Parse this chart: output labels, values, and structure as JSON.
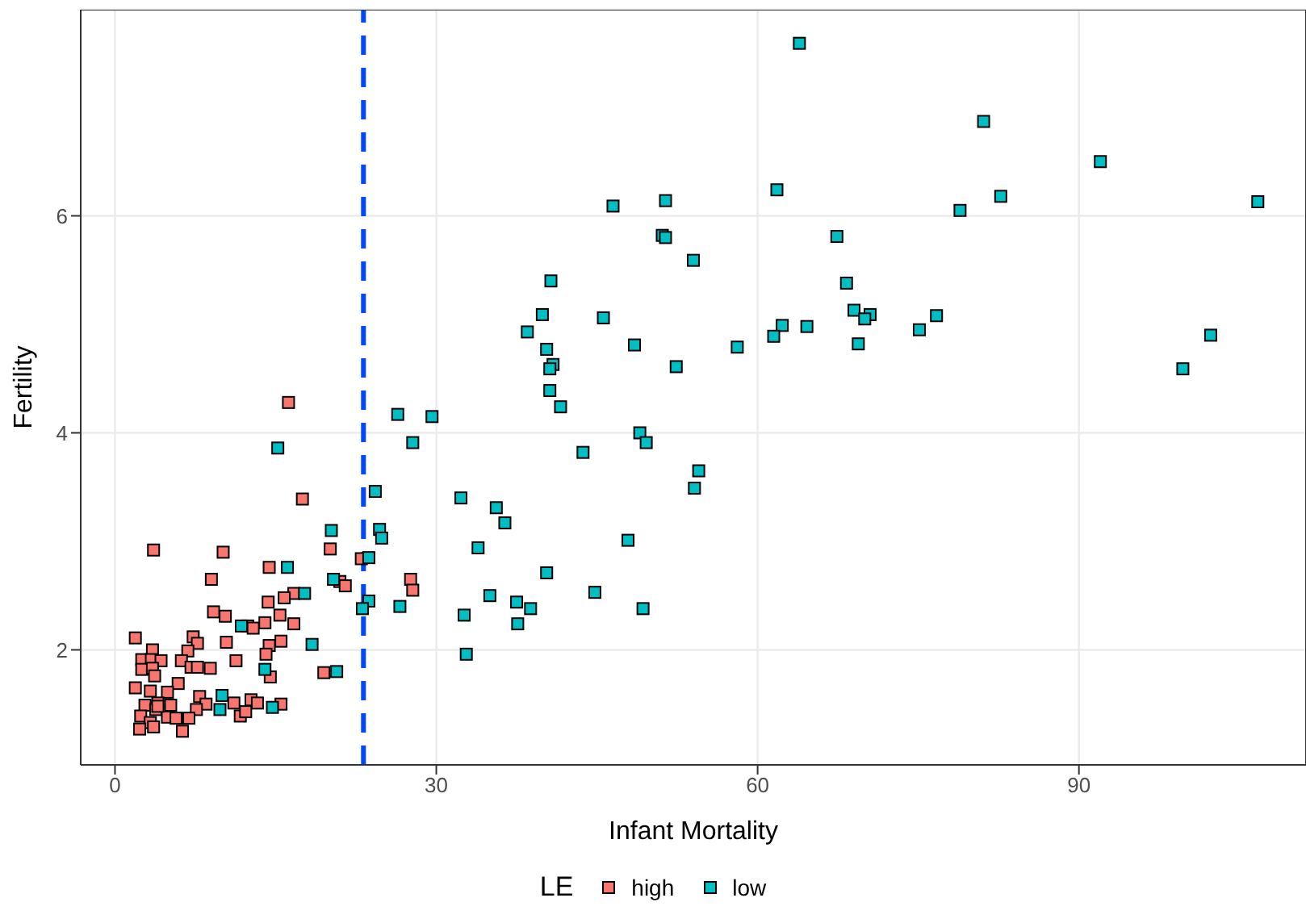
{
  "chart_data": {
    "type": "scatter",
    "xlabel": "Infant Mortality",
    "ylabel": "Fertility",
    "legend_title": "LE",
    "legend": "bottom",
    "grid": true,
    "marker": "square",
    "xlim": [
      -3.2,
      111.2
    ],
    "ylim": [
      0.94,
      7.9
    ],
    "xticks": [
      0,
      30,
      60,
      90
    ],
    "yticks": [
      2,
      4,
      6
    ],
    "ref_lines": [
      {
        "axis": "x",
        "value": 23.2,
        "color": "#0047ff",
        "line_style": "dashed"
      }
    ],
    "series": [
      {
        "name": "high",
        "color": "#f8766d",
        "x": [
          16.2,
          17.5,
          20.1,
          23.0,
          3.6,
          10.1,
          14.4,
          9.0,
          21.0,
          21.5,
          16.7,
          15.8,
          14.3,
          9.2,
          10.3,
          15.4,
          16.7,
          12.4,
          12.9,
          14.0,
          1.9,
          7.3,
          10.4,
          7.7,
          15.5,
          14.4,
          3.5,
          6.8,
          2.5,
          3.4,
          4.3,
          6.2,
          11.3,
          14.1,
          7.1,
          7.7,
          8.9,
          2.5,
          3.5,
          3.7,
          14.5,
          19.5,
          5.9,
          1.9,
          3.3,
          4.9,
          7.9,
          8.5,
          2.8,
          4.0,
          5.2,
          7.6,
          11.1,
          12.7,
          13.3,
          15.5,
          2.4,
          3.3,
          3.6,
          2.3,
          4.9,
          5.7,
          6.9,
          11.7,
          12.2,
          6.3,
          3.8,
          4.0,
          27.6,
          27.8
        ],
        "values": [
          4.28,
          3.39,
          2.93,
          2.84,
          2.92,
          2.9,
          2.76,
          2.65,
          2.63,
          2.59,
          2.52,
          2.48,
          2.44,
          2.35,
          2.31,
          2.32,
          2.24,
          2.22,
          2.2,
          2.25,
          2.11,
          2.12,
          2.07,
          2.06,
          2.08,
          2.04,
          2.0,
          1.99,
          1.91,
          1.91,
          1.9,
          1.9,
          1.9,
          1.96,
          1.84,
          1.84,
          1.83,
          1.82,
          1.83,
          1.76,
          1.75,
          1.79,
          1.69,
          1.65,
          1.62,
          1.61,
          1.57,
          1.5,
          1.49,
          1.51,
          1.49,
          1.45,
          1.51,
          1.54,
          1.51,
          1.5,
          1.39,
          1.33,
          1.29,
          1.27,
          1.38,
          1.37,
          1.37,
          1.39,
          1.43,
          1.25,
          1.45,
          1.48,
          2.65,
          2.55
        ]
      },
      {
        "name": "low",
        "color": "#00bfc4",
        "x": [
          63.9,
          81.1,
          92.0,
          61.8,
          82.7,
          106.7,
          46.5,
          51.4,
          78.9,
          51.1,
          51.4,
          67.4,
          54.0,
          40.7,
          68.3,
          39.9,
          45.6,
          69.0,
          70.5,
          70.0,
          76.7,
          75.1,
          38.5,
          62.3,
          64.6,
          61.5,
          40.3,
          48.5,
          58.1,
          69.4,
          102.3,
          99.7,
          40.9,
          40.6,
          52.4,
          40.6,
          41.6,
          26.4,
          29.6,
          27.8,
          43.7,
          49.0,
          49.6,
          54.5,
          54.1,
          24.3,
          32.3,
          35.6,
          36.4,
          20.2,
          24.7,
          24.9,
          33.9,
          47.9,
          23.7,
          40.3,
          20.4,
          44.8,
          35.0,
          37.5,
          38.8,
          49.3,
          23.7,
          23.1,
          26.6,
          32.6,
          37.6,
          32.8,
          18.4,
          20.7,
          15.2,
          16.1,
          17.7,
          11.8,
          14.0,
          10.0,
          9.8,
          14.7
        ],
        "values": [
          7.59,
          6.87,
          6.5,
          6.24,
          6.18,
          6.13,
          6.09,
          6.14,
          6.05,
          5.82,
          5.8,
          5.81,
          5.59,
          5.4,
          5.38,
          5.09,
          5.06,
          5.13,
          5.09,
          5.05,
          5.08,
          4.95,
          4.93,
          4.99,
          4.98,
          4.89,
          4.77,
          4.81,
          4.79,
          4.82,
          4.9,
          4.59,
          4.63,
          4.59,
          4.61,
          4.39,
          4.24,
          4.17,
          4.15,
          3.91,
          3.82,
          4.0,
          3.91,
          3.65,
          3.49,
          3.46,
          3.4,
          3.31,
          3.17,
          3.1,
          3.11,
          3.03,
          2.94,
          3.01,
          2.85,
          2.71,
          2.65,
          2.53,
          2.5,
          2.44,
          2.38,
          2.38,
          2.45,
          2.38,
          2.4,
          2.32,
          2.24,
          1.96,
          2.05,
          1.8,
          3.86,
          2.76,
          2.52,
          2.22,
          1.82,
          1.58,
          1.45,
          1.47
        ]
      }
    ]
  }
}
